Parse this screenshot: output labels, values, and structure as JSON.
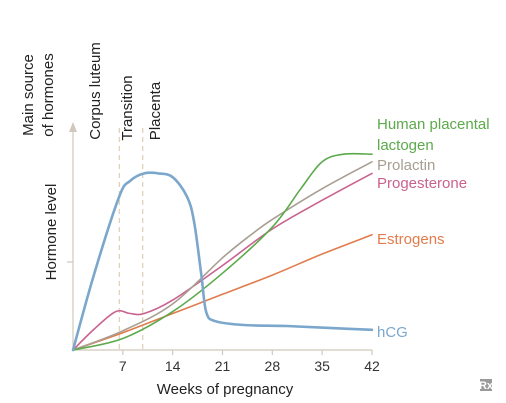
{
  "chart_data": {
    "type": "line",
    "xlabel": "Weeks of pregnancy",
    "ylabel": "Hormone level",
    "y_section_title": "Main source of hormones",
    "y_section_title_lines": [
      "Main source",
      "of hormones"
    ],
    "x_ticks": [
      7,
      14,
      21,
      28,
      35,
      42
    ],
    "xlim": [
      0,
      42
    ],
    "ylim": [
      0,
      100
    ],
    "y_ticks_labeled": false,
    "grid": false,
    "phases": [
      {
        "label": "Corpus luteum",
        "boundary_week": 6.5
      },
      {
        "label": "Transition",
        "boundary_week": 9.8
      },
      {
        "label": "Placenta"
      }
    ],
    "series": [
      {
        "name": "hCG",
        "color": "#7BA7CC",
        "points": [
          [
            0,
            0
          ],
          [
            3,
            40
          ],
          [
            6.5,
            80
          ],
          [
            8,
            88
          ],
          [
            10,
            92
          ],
          [
            12,
            92
          ],
          [
            14,
            90
          ],
          [
            16,
            80
          ],
          [
            17,
            67
          ],
          [
            18,
            40
          ],
          [
            18.7,
            20
          ],
          [
            20,
            15
          ],
          [
            24,
            13
          ],
          [
            30,
            12.5
          ],
          [
            36,
            11.5
          ],
          [
            42,
            10.5
          ]
        ]
      },
      {
        "name": "Human placental lactogen",
        "label_lines": [
          "Human placental",
          "lactogen"
        ],
        "color": "#5CAA4B",
        "points": [
          [
            0,
            0
          ],
          [
            7,
            6
          ],
          [
            14,
            20
          ],
          [
            21,
            40
          ],
          [
            28,
            64
          ],
          [
            32,
            84
          ],
          [
            35,
            98
          ],
          [
            38,
            102
          ],
          [
            42,
            102
          ]
        ]
      },
      {
        "name": "Prolactin",
        "color": "#A89E91",
        "points": [
          [
            0,
            0
          ],
          [
            7,
            10
          ],
          [
            14,
            24
          ],
          [
            21,
            48
          ],
          [
            25,
            60
          ],
          [
            28,
            68
          ],
          [
            35,
            84
          ],
          [
            42,
            98
          ]
        ]
      },
      {
        "name": "Progesterone",
        "color": "#C9628E",
        "points": [
          [
            0,
            0
          ],
          [
            3,
            11
          ],
          [
            6,
            20
          ],
          [
            8,
            19
          ],
          [
            10,
            19
          ],
          [
            14,
            26
          ],
          [
            21,
            44
          ],
          [
            28,
            63
          ],
          [
            35,
            78
          ],
          [
            42,
            92
          ]
        ]
      },
      {
        "name": "Estrogens",
        "color": "#E07C4D",
        "points": [
          [
            0,
            0
          ],
          [
            7,
            9
          ],
          [
            14,
            19
          ],
          [
            21,
            29
          ],
          [
            28,
            39
          ],
          [
            35,
            50
          ],
          [
            42,
            60
          ]
        ]
      }
    ]
  },
  "watermark": "Rx"
}
